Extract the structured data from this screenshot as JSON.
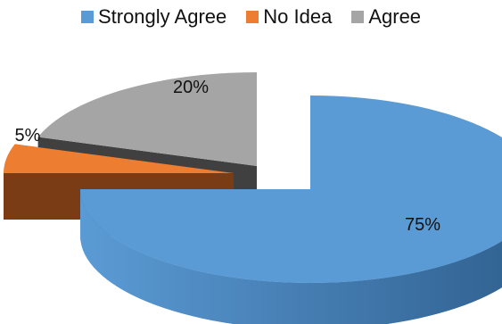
{
  "chart_data": {
    "type": "pie",
    "title": "",
    "legend_position": "top",
    "categories": [
      "Strongly Agree",
      "No Idea",
      "Agree"
    ],
    "values": [
      75,
      5,
      20
    ],
    "labels": [
      "75%",
      "5%",
      "20%"
    ],
    "colors": [
      "#5b9bd5",
      "#ed7d31",
      "#a5a5a5"
    ],
    "dark_colors": [
      "#2f5f8e",
      "#7a3c14",
      "#404040"
    ],
    "exploded": true,
    "three_d": true
  }
}
